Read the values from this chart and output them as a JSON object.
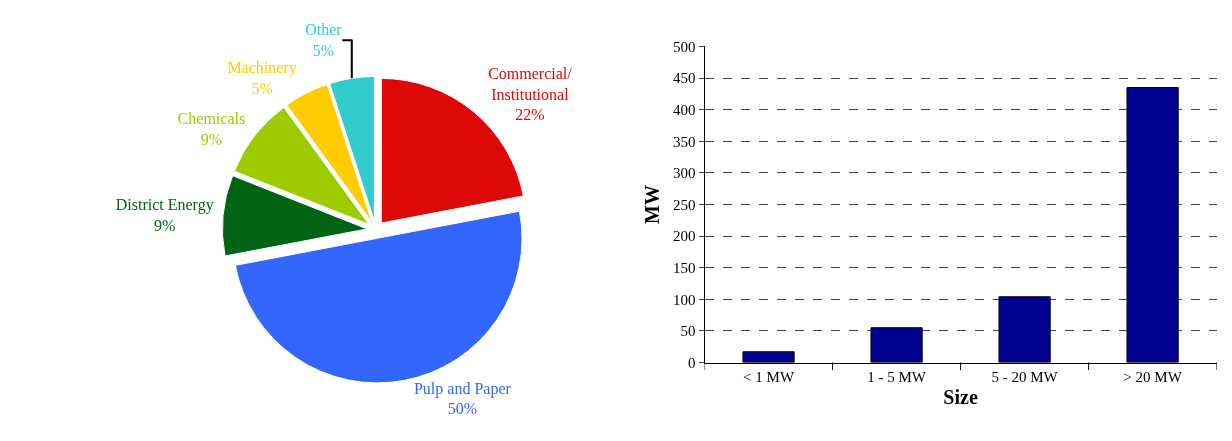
{
  "chart_data": [
    {
      "type": "pie",
      "categories": [
        "Commercial/\nInstitutional",
        "Pulp and Paper",
        "District Energy",
        "Chemicals",
        "Machinery",
        "Other"
      ],
      "values": [
        22,
        50,
        9,
        9,
        5,
        5
      ],
      "colors": [
        "#dd0808",
        "#3366ff",
        "#006414",
        "#9ccc00",
        "#ffcc00",
        "#33cccc"
      ],
      "value_labels": [
        "22%",
        "50%",
        "9%",
        "9%",
        "5%",
        "5%"
      ]
    },
    {
      "type": "bar",
      "categories": [
        "< 1 MW",
        "1 - 5 MW",
        "5 - 20 MW",
        "> 20 MW"
      ],
      "values": [
        17,
        55,
        104,
        435
      ],
      "color": "#000090",
      "xlabel": "Size",
      "ylabel": "MW",
      "ylim": [
        0,
        500
      ],
      "yticks": [
        0,
        50,
        100,
        150,
        200,
        250,
        300,
        350,
        400,
        450,
        500
      ],
      "grid": "y"
    }
  ]
}
